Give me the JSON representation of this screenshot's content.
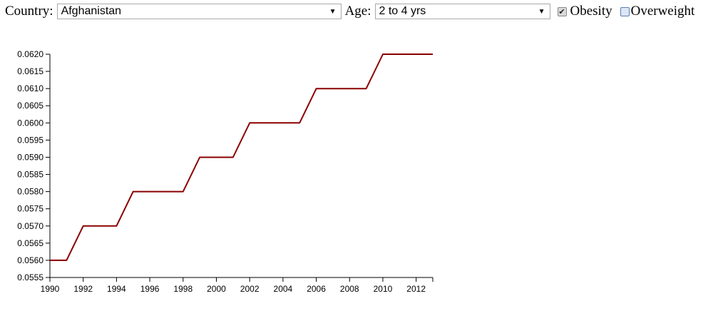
{
  "controls": {
    "country_label": "Country:",
    "country_value": "Afghanistan",
    "age_label": "Age:",
    "age_value": "2 to 4 yrs",
    "obesity_label": "Obesity",
    "obesity_checked": true,
    "overweight_label": "Overweight",
    "overweight_checked": false
  },
  "chart_data": {
    "type": "line",
    "x": [
      1990,
      1991,
      1992,
      1993,
      1994,
      1995,
      1996,
      1997,
      1998,
      1999,
      2000,
      2001,
      2002,
      2003,
      2004,
      2005,
      2006,
      2007,
      2008,
      2009,
      2010,
      2011,
      2012,
      2013
    ],
    "series": [
      {
        "color": "#8b0000",
        "values": [
          0.056,
          0.056,
          0.057,
          0.057,
          0.057,
          0.058,
          0.058,
          0.058,
          0.058,
          0.059,
          0.059,
          0.059,
          0.06,
          0.06,
          0.06,
          0.06,
          0.061,
          0.061,
          0.061,
          0.061,
          0.062,
          0.062,
          0.062,
          0.062
        ]
      }
    ],
    "xticks": [
      "1990",
      "1992",
      "1994",
      "1996",
      "1998",
      "2000",
      "2002",
      "2004",
      "2006",
      "2008",
      "2010",
      "2012"
    ],
    "yticks": [
      "0.0555",
      "0.0560",
      "0.0565",
      "0.0570",
      "0.0575",
      "0.0580",
      "0.0585",
      "0.0590",
      "0.0595",
      "0.0600",
      "0.0605",
      "0.0610",
      "0.0615",
      "0.0620"
    ],
    "xlim": [
      1990,
      2013
    ],
    "ylim": [
      0.0555,
      0.062
    ],
    "title": "",
    "xlabel": "",
    "ylabel": "",
    "grid": false
  }
}
